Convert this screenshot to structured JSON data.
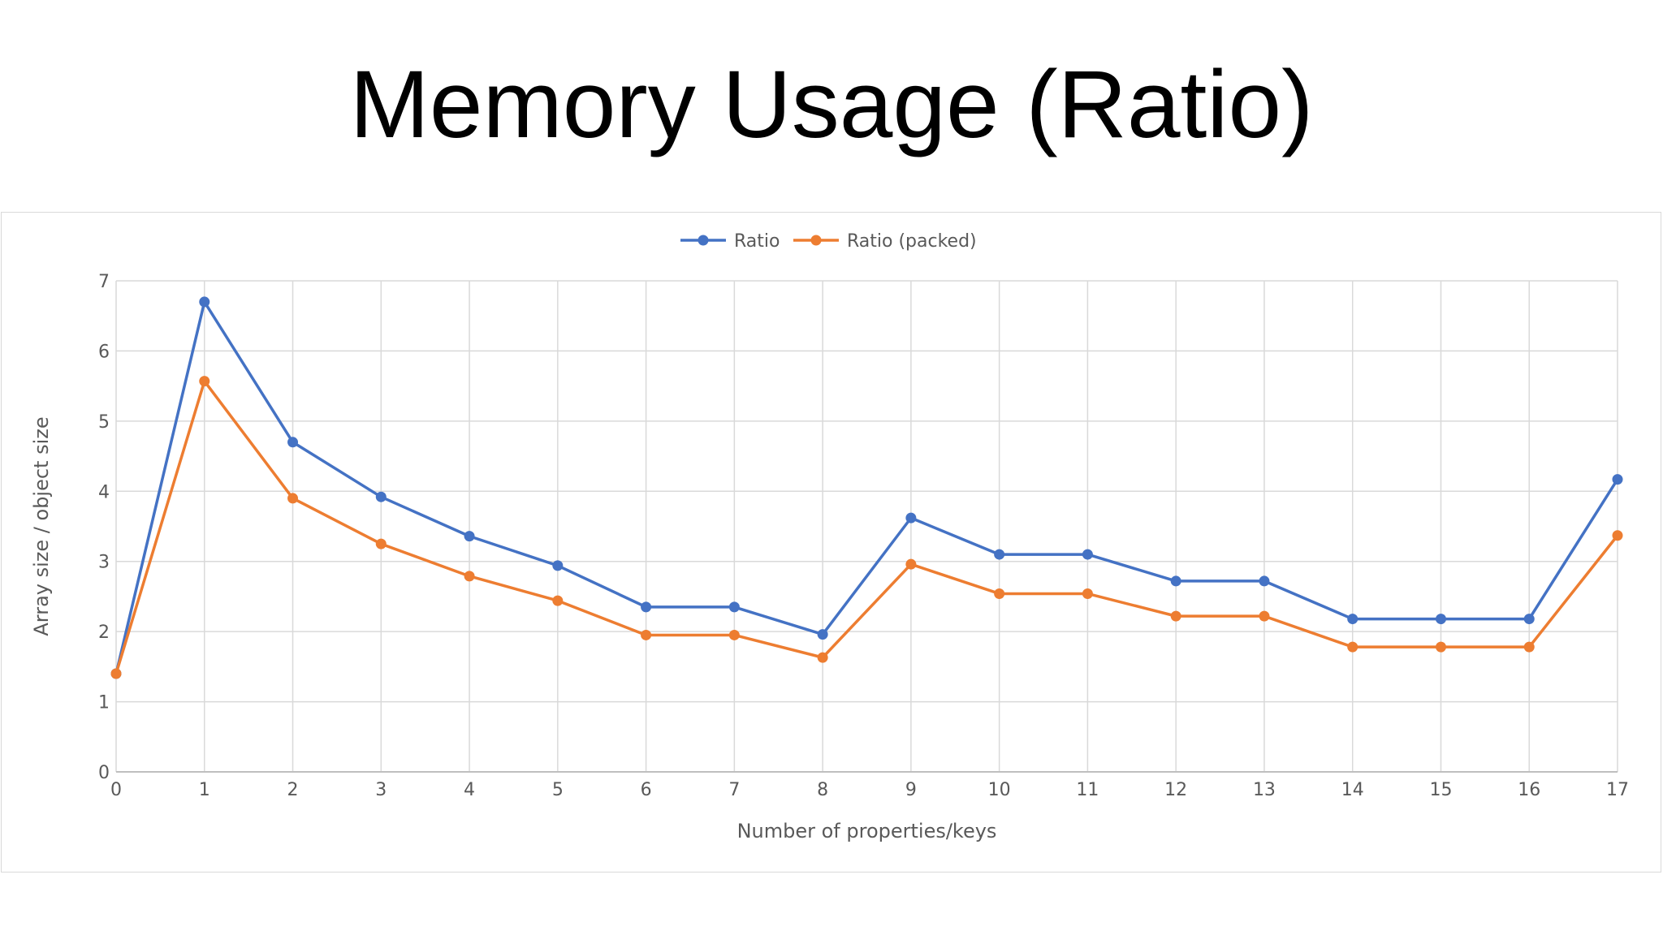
{
  "slide": {
    "title": "Memory Usage (Ratio)"
  },
  "chart_data": {
    "type": "line",
    "title": "",
    "xlabel": "Number of properties/keys",
    "ylabel": "Array size / object size",
    "x": [
      0,
      1,
      2,
      3,
      4,
      5,
      6,
      7,
      8,
      9,
      10,
      11,
      12,
      13,
      14,
      15,
      16,
      17
    ],
    "xlim": [
      0,
      17
    ],
    "ylim": [
      0,
      7
    ],
    "yticks": [
      0,
      1,
      2,
      3,
      4,
      5,
      6,
      7
    ],
    "grid": true,
    "legend_position": "top",
    "series": [
      {
        "name": "Ratio",
        "color": "#4472c4",
        "values": [
          1.4,
          6.7,
          4.7,
          3.92,
          3.36,
          2.94,
          2.35,
          2.35,
          1.96,
          3.62,
          3.1,
          3.1,
          2.72,
          2.72,
          2.18,
          2.18,
          2.18,
          4.17
        ]
      },
      {
        "name": "Ratio (packed)",
        "color": "#ed7d31",
        "values": [
          1.4,
          5.57,
          3.9,
          3.25,
          2.79,
          2.44,
          1.95,
          1.95,
          1.63,
          2.96,
          2.54,
          2.54,
          2.22,
          2.22,
          1.78,
          1.78,
          1.78,
          3.37
        ]
      }
    ]
  }
}
